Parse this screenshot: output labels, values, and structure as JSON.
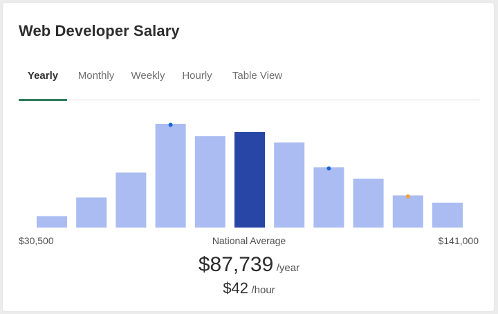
{
  "card": {
    "title": "Web Developer Salary"
  },
  "tabs": [
    "Yearly",
    "Monthly",
    "Weekly",
    "Hourly",
    "Table View"
  ],
  "active_tab": "Yearly",
  "range": {
    "min_label": "$30,500",
    "max_label": "$141,000",
    "center_label": "National Average"
  },
  "average": {
    "yearly": "$87,739",
    "yearly_unit": "/year",
    "hourly": "$42",
    "hourly_unit": "/hour"
  },
  "colors": {
    "bar": "#aabcf1",
    "highlight": "#2846a6",
    "accent": "#2e7d5b",
    "marker_blue": "#1a66d4",
    "marker_orange": "#f2a23c"
  },
  "chart_data": {
    "type": "bar",
    "values": [
      11,
      29,
      53,
      100,
      88,
      92,
      82,
      58,
      47,
      31,
      24
    ],
    "highlight_index": 5,
    "markers": [
      {
        "index": 3,
        "color": "blue"
      },
      {
        "index": 7,
        "color": "blue"
      },
      {
        "index": 9,
        "color": "orange"
      }
    ]
  }
}
